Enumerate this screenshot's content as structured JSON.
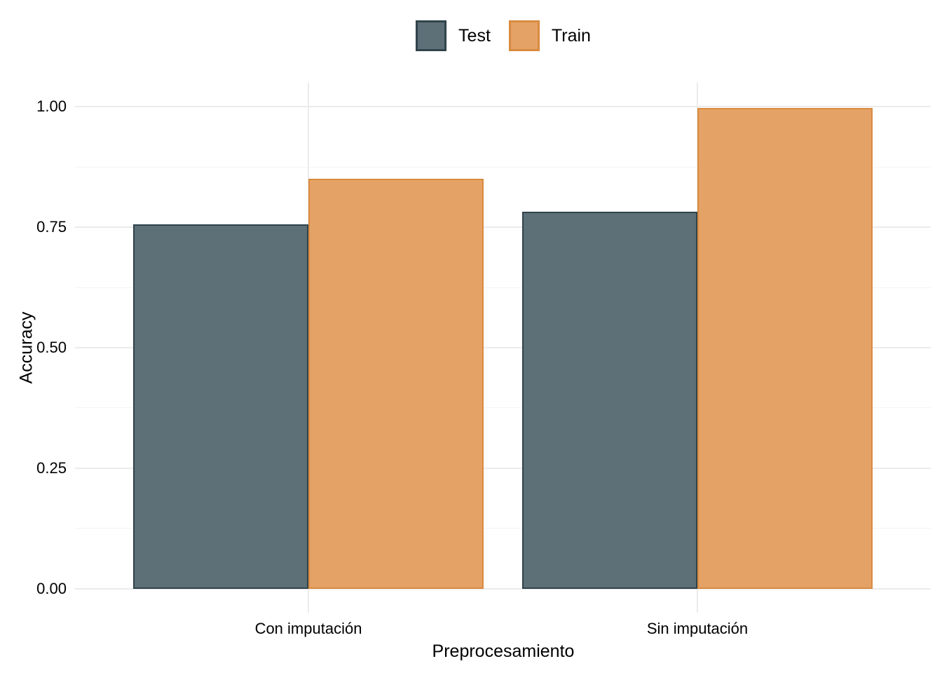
{
  "chart_data": {
    "type": "bar",
    "title": "",
    "categories": [
      "Con imputación",
      "Sin imputación"
    ],
    "series": [
      {
        "name": "Test",
        "values": [
          0.756,
          0.783
        ],
        "fill": "#5D6F77",
        "stroke": "#31444C"
      },
      {
        "name": "Train",
        "values": [
          0.85,
          0.998
        ],
        "fill": "#E5A266",
        "stroke": "#D98B40"
      }
    ],
    "xlabel": "Preprocesamiento",
    "ylabel": "Accuracy",
    "ylim": [
      -0.05,
      1.05
    ],
    "y_major_ticks": [
      0,
      0.25,
      0.5,
      0.75,
      1
    ],
    "y_tick_labels": [
      "0.00",
      "0.25",
      "0.50",
      "0.75",
      "1.00"
    ],
    "y_minor_ticks": [
      0.125,
      0.375,
      0.625,
      0.875
    ],
    "grid": {
      "show": true,
      "major_color": "#EBEBEB",
      "minor_color": "#F4F4F4",
      "panel_background": "#FFFFFF"
    },
    "legend_position": "top",
    "bar_layout": "dodged"
  }
}
